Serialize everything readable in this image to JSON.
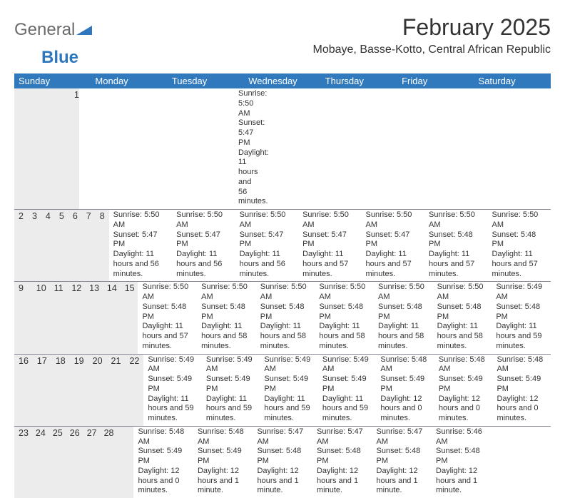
{
  "logo": {
    "text1": "General",
    "text2": "Blue",
    "tri_color": "#2f77bc"
  },
  "title": "February 2025",
  "location": "Mobaye, Basse-Kotto, Central African Republic",
  "colors": {
    "header_bg": "#3079bd",
    "header_fg": "#ffffff",
    "daynum_bg": "#ececec",
    "text": "#333333",
    "rule": "#8a8a9a"
  },
  "day_names": [
    "Sunday",
    "Monday",
    "Tuesday",
    "Wednesday",
    "Thursday",
    "Friday",
    "Saturday"
  ],
  "weeks": [
    {
      "nums": [
        "",
        "",
        "",
        "",
        "",
        "",
        "1"
      ],
      "cells": [
        null,
        null,
        null,
        null,
        null,
        null,
        {
          "sr": "Sunrise: 5:50 AM",
          "ss": "Sunset: 5:47 PM",
          "dl": "Daylight: 11 hours and 56 minutes."
        }
      ]
    },
    {
      "nums": [
        "2",
        "3",
        "4",
        "5",
        "6",
        "7",
        "8"
      ],
      "cells": [
        {
          "sr": "Sunrise: 5:50 AM",
          "ss": "Sunset: 5:47 PM",
          "dl": "Daylight: 11 hours and 56 minutes."
        },
        {
          "sr": "Sunrise: 5:50 AM",
          "ss": "Sunset: 5:47 PM",
          "dl": "Daylight: 11 hours and 56 minutes."
        },
        {
          "sr": "Sunrise: 5:50 AM",
          "ss": "Sunset: 5:47 PM",
          "dl": "Daylight: 11 hours and 56 minutes."
        },
        {
          "sr": "Sunrise: 5:50 AM",
          "ss": "Sunset: 5:47 PM",
          "dl": "Daylight: 11 hours and 57 minutes."
        },
        {
          "sr": "Sunrise: 5:50 AM",
          "ss": "Sunset: 5:47 PM",
          "dl": "Daylight: 11 hours and 57 minutes."
        },
        {
          "sr": "Sunrise: 5:50 AM",
          "ss": "Sunset: 5:48 PM",
          "dl": "Daylight: 11 hours and 57 minutes."
        },
        {
          "sr": "Sunrise: 5:50 AM",
          "ss": "Sunset: 5:48 PM",
          "dl": "Daylight: 11 hours and 57 minutes."
        }
      ]
    },
    {
      "nums": [
        "9",
        "10",
        "11",
        "12",
        "13",
        "14",
        "15"
      ],
      "cells": [
        {
          "sr": "Sunrise: 5:50 AM",
          "ss": "Sunset: 5:48 PM",
          "dl": "Daylight: 11 hours and 57 minutes."
        },
        {
          "sr": "Sunrise: 5:50 AM",
          "ss": "Sunset: 5:48 PM",
          "dl": "Daylight: 11 hours and 58 minutes."
        },
        {
          "sr": "Sunrise: 5:50 AM",
          "ss": "Sunset: 5:48 PM",
          "dl": "Daylight: 11 hours and 58 minutes."
        },
        {
          "sr": "Sunrise: 5:50 AM",
          "ss": "Sunset: 5:48 PM",
          "dl": "Daylight: 11 hours and 58 minutes."
        },
        {
          "sr": "Sunrise: 5:50 AM",
          "ss": "Sunset: 5:48 PM",
          "dl": "Daylight: 11 hours and 58 minutes."
        },
        {
          "sr": "Sunrise: 5:50 AM",
          "ss": "Sunset: 5:48 PM",
          "dl": "Daylight: 11 hours and 58 minutes."
        },
        {
          "sr": "Sunrise: 5:49 AM",
          "ss": "Sunset: 5:48 PM",
          "dl": "Daylight: 11 hours and 59 minutes."
        }
      ]
    },
    {
      "nums": [
        "16",
        "17",
        "18",
        "19",
        "20",
        "21",
        "22"
      ],
      "cells": [
        {
          "sr": "Sunrise: 5:49 AM",
          "ss": "Sunset: 5:49 PM",
          "dl": "Daylight: 11 hours and 59 minutes."
        },
        {
          "sr": "Sunrise: 5:49 AM",
          "ss": "Sunset: 5:49 PM",
          "dl": "Daylight: 11 hours and 59 minutes."
        },
        {
          "sr": "Sunrise: 5:49 AM",
          "ss": "Sunset: 5:49 PM",
          "dl": "Daylight: 11 hours and 59 minutes."
        },
        {
          "sr": "Sunrise: 5:49 AM",
          "ss": "Sunset: 5:49 PM",
          "dl": "Daylight: 11 hours and 59 minutes."
        },
        {
          "sr": "Sunrise: 5:48 AM",
          "ss": "Sunset: 5:49 PM",
          "dl": "Daylight: 12 hours and 0 minutes."
        },
        {
          "sr": "Sunrise: 5:48 AM",
          "ss": "Sunset: 5:49 PM",
          "dl": "Daylight: 12 hours and 0 minutes."
        },
        {
          "sr": "Sunrise: 5:48 AM",
          "ss": "Sunset: 5:49 PM",
          "dl": "Daylight: 12 hours and 0 minutes."
        }
      ]
    },
    {
      "nums": [
        "23",
        "24",
        "25",
        "26",
        "27",
        "28",
        ""
      ],
      "cells": [
        {
          "sr": "Sunrise: 5:48 AM",
          "ss": "Sunset: 5:49 PM",
          "dl": "Daylight: 12 hours and 0 minutes."
        },
        {
          "sr": "Sunrise: 5:48 AM",
          "ss": "Sunset: 5:49 PM",
          "dl": "Daylight: 12 hours and 1 minute."
        },
        {
          "sr": "Sunrise: 5:47 AM",
          "ss": "Sunset: 5:48 PM",
          "dl": "Daylight: 12 hours and 1 minute."
        },
        {
          "sr": "Sunrise: 5:47 AM",
          "ss": "Sunset: 5:48 PM",
          "dl": "Daylight: 12 hours and 1 minute."
        },
        {
          "sr": "Sunrise: 5:47 AM",
          "ss": "Sunset: 5:48 PM",
          "dl": "Daylight: 12 hours and 1 minute."
        },
        {
          "sr": "Sunrise: 5:46 AM",
          "ss": "Sunset: 5:48 PM",
          "dl": "Daylight: 12 hours and 1 minute."
        },
        null
      ]
    }
  ]
}
